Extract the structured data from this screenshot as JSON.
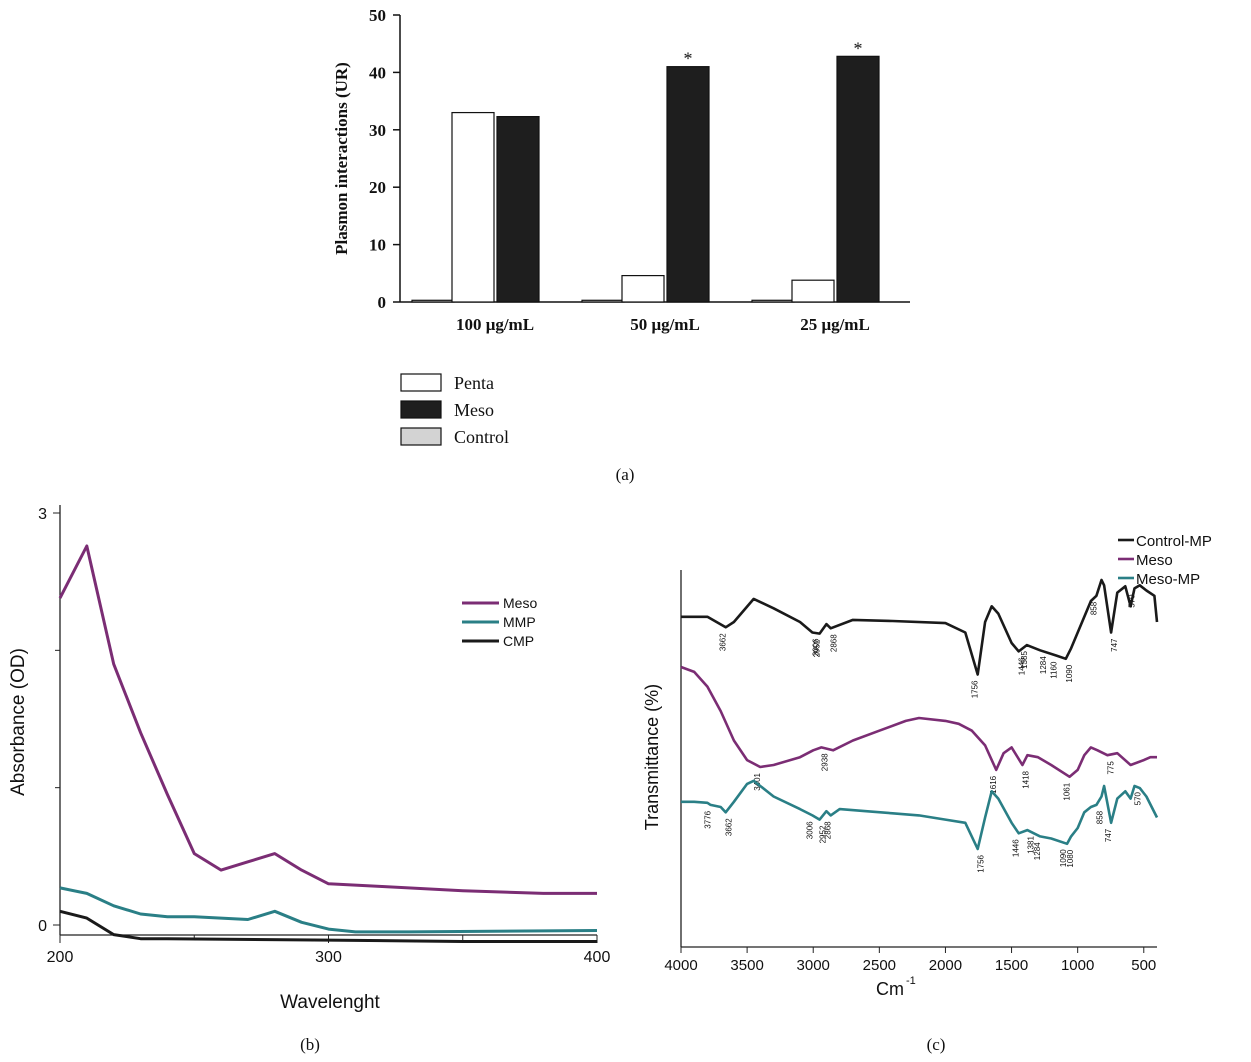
{
  "chart_data": [
    {
      "type": "bar",
      "panel_label": "(a)",
      "ylabel": "Plasmon interactions (UR)",
      "ylim": [
        0,
        50
      ],
      "yticks": [
        0,
        10,
        20,
        30,
        40,
        50
      ],
      "categories": [
        "100 μg/mL",
        "50 μg/mL",
        "25 μg/mL"
      ],
      "series": [
        {
          "name": "Control",
          "values": [
            0.3,
            0.3,
            0.3
          ],
          "color": "#d3d3d3"
        },
        {
          "name": "Penta",
          "values": [
            33,
            4.6,
            3.8
          ],
          "color": "#ffffff"
        },
        {
          "name": "Meso",
          "values": [
            32.3,
            41,
            42.8
          ],
          "color": "#1e1e1e"
        }
      ],
      "annotations": [
        {
          "category": "50 μg/mL",
          "series": "Meso",
          "text": "*"
        },
        {
          "category": "25 μg/mL",
          "series": "Meso",
          "text": "*"
        }
      ],
      "legend": [
        "Penta",
        "Meso",
        "Control"
      ],
      "legend_position": "bottom-left"
    },
    {
      "type": "line",
      "panel_label": "(b)",
      "xlabel": "Wavelenght",
      "ylabel": "Absorbance (OD)",
      "xlim": [
        200,
        400
      ],
      "xticks": [
        200,
        300,
        400
      ],
      "ylim": [
        0,
        3
      ],
      "yticks": [
        0,
        3
      ],
      "legend_position": "top-right",
      "series": [
        {
          "name": "Meso",
          "color": "#7b2d74",
          "x": [
            200,
            210,
            220,
            230,
            240,
            250,
            260,
            270,
            280,
            290,
            300,
            320,
            350,
            380,
            400
          ],
          "y": [
            2.38,
            2.76,
            1.9,
            1.4,
            0.95,
            0.52,
            0.4,
            0.46,
            0.52,
            0.4,
            0.3,
            0.28,
            0.25,
            0.23,
            0.23
          ]
        },
        {
          "name": "MMP",
          "color": "#2a7f86",
          "x": [
            200,
            210,
            220,
            230,
            240,
            250,
            260,
            270,
            280,
            290,
            300,
            310,
            330,
            400
          ],
          "y": [
            0.27,
            0.23,
            0.14,
            0.08,
            0.06,
            0.06,
            0.05,
            0.04,
            0.1,
            0.02,
            -0.03,
            -0.05,
            -0.05,
            -0.04
          ]
        },
        {
          "name": "CMP",
          "color": "#1a1a1a",
          "x": [
            200,
            210,
            220,
            230,
            240,
            300,
            350,
            400
          ],
          "y": [
            0.1,
            0.05,
            -0.07,
            -0.1,
            -0.1,
            -0.11,
            -0.12,
            -0.12
          ]
        }
      ]
    },
    {
      "type": "line",
      "panel_label": "(c)",
      "xlabel": "Cm",
      "xlabel_sup": "-1",
      "ylabel": "Transmittance (%)",
      "xlim": [
        4000,
        400
      ],
      "xticks": [
        4000,
        3500,
        3000,
        2500,
        2000,
        1500,
        1000,
        500
      ],
      "legend_position": "top-right",
      "series": [
        {
          "name": "Control-MP",
          "color": "#1a1a1a",
          "x": [
            4000,
            3800,
            3662,
            3600,
            3450,
            3300,
            3100,
            3006,
            2952,
            2900,
            2868,
            2700,
            2400,
            2000,
            1850,
            1756,
            1700,
            1650,
            1600,
            1500,
            1446,
            1385,
            1284,
            1160,
            1090,
            1050,
            1000,
            950,
            900,
            858,
            820,
            800,
            747,
            700,
            640,
            600,
            570,
            530,
            480,
            420,
            400
          ],
          "y": [
            25,
            25,
            15,
            20,
            42,
            33,
            20,
            10,
            9,
            18,
            14,
            22,
            21,
            19,
            10,
            -30,
            20,
            35,
            28,
            0,
            -8,
            -2,
            -7,
            -12,
            -15,
            -5,
            10,
            25,
            40,
            45,
            60,
            55,
            10,
            48,
            54,
            35,
            52,
            55,
            50,
            45,
            20
          ]
        },
        {
          "name": "Meso",
          "color": "#7b2d74",
          "x": [
            4000,
            3900,
            3800,
            3700,
            3600,
            3500,
            3401,
            3300,
            3100,
            3000,
            2938,
            2850,
            2700,
            2500,
            2300,
            2200,
            2000,
            1900,
            1800,
            1700,
            1616,
            1560,
            1500,
            1418,
            1380,
            1300,
            1200,
            1061,
            1000,
            950,
            900,
            850,
            775,
            700,
            600,
            500,
            450,
            400
          ],
          "y": [
            100,
            95,
            80,
            55,
            25,
            5,
            -2,
            0,
            8,
            15,
            18,
            15,
            25,
            35,
            45,
            48,
            45,
            42,
            35,
            20,
            -5,
            12,
            18,
            0,
            10,
            8,
            0,
            -12,
            -5,
            10,
            18,
            15,
            10,
            12,
            0,
            5,
            8,
            8
          ]
        },
        {
          "name": "Meso-MP",
          "color": "#2a7f86",
          "x": [
            4000,
            3900,
            3800,
            3776,
            3700,
            3662,
            3600,
            3500,
            3450,
            3400,
            3300,
            3100,
            3006,
            2952,
            2900,
            2868,
            2800,
            2600,
            2400,
            2200,
            2000,
            1850,
            1756,
            1700,
            1650,
            1600,
            1500,
            1446,
            1381,
            1284,
            1200,
            1080,
            1050,
            1000,
            950,
            900,
            858,
            820,
            800,
            747,
            700,
            640,
            600,
            570,
            530,
            480,
            400
          ],
          "y": [
            25,
            25,
            24,
            22,
            20,
            15,
            25,
            42,
            45,
            40,
            30,
            18,
            12,
            8,
            16,
            12,
            18,
            16,
            14,
            12,
            8,
            5,
            -20,
            10,
            35,
            28,
            5,
            -5,
            -2,
            -8,
            -10,
            -15,
            -8,
            0,
            15,
            20,
            22,
            30,
            40,
            5,
            28,
            35,
            28,
            40,
            38,
            30,
            10
          ]
        }
      ],
      "peak_labels": {
        "Control-MP": [
          "3662",
          "3006",
          "2952",
          "2868",
          "1756",
          "1446",
          "1385",
          "1284",
          "1160",
          "1090",
          "858",
          "747",
          "570"
        ],
        "Meso": [
          "3401",
          "2938",
          "1616",
          "1418",
          "1061",
          "775"
        ],
        "Meso-MP": [
          "3776",
          "3662",
          "3006",
          "2952",
          "2868",
          "1756",
          "1446",
          "1381",
          "1284",
          "1080",
          "1090",
          "858",
          "747",
          "570"
        ]
      }
    }
  ]
}
